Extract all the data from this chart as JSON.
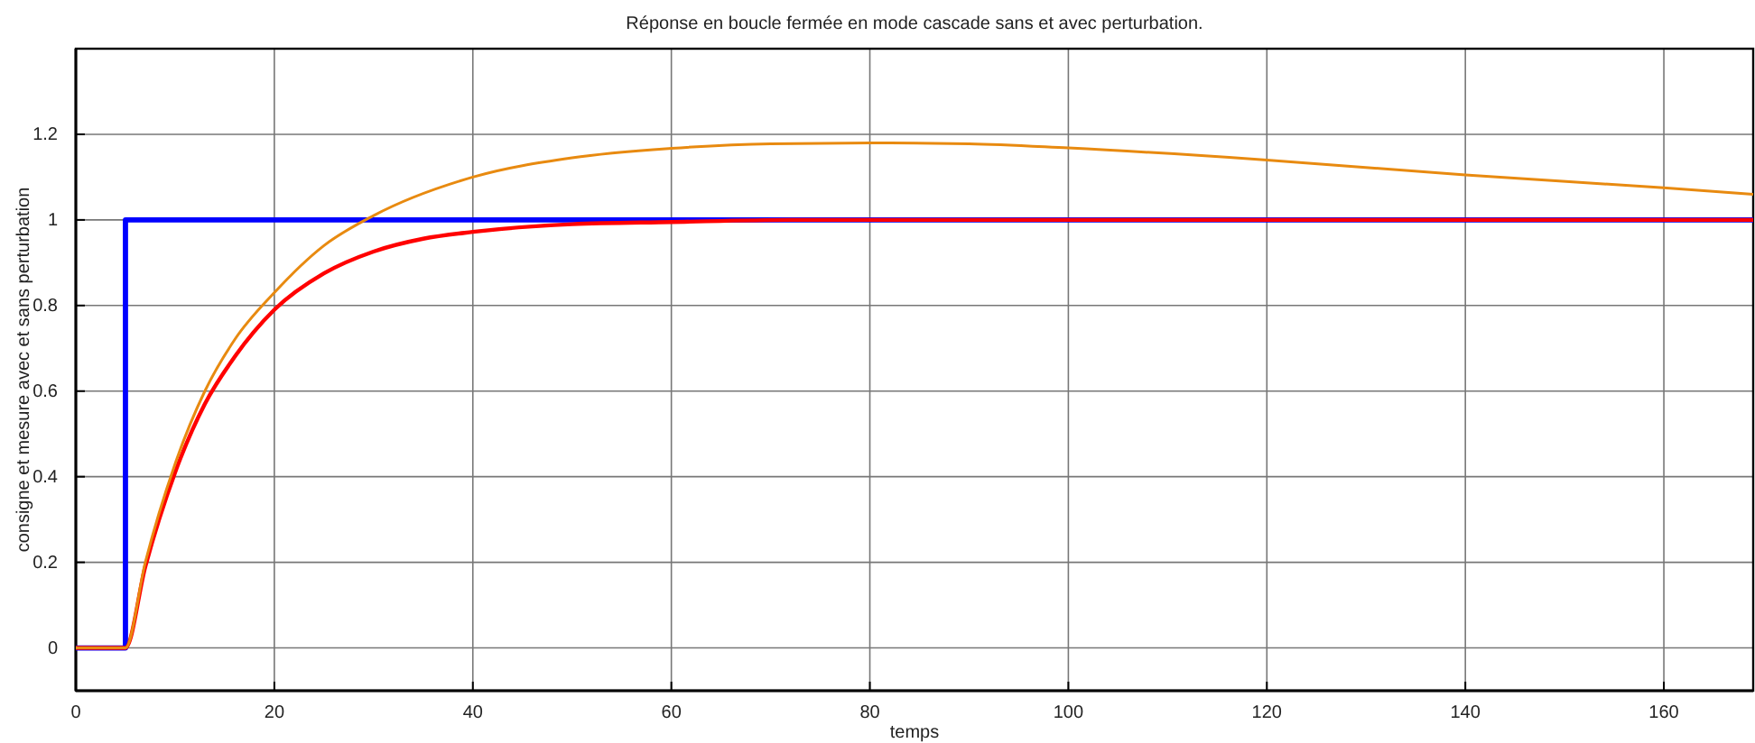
{
  "chart_data": {
    "type": "line",
    "title": "Réponse en boucle fermée en mode cascade sans et avec perturbation.",
    "xlabel": "temps",
    "ylabel": "consigne et mesure avec et sans perturbation",
    "xlim": [
      0,
      169
    ],
    "ylim": [
      -0.1,
      1.4
    ],
    "xticks": [
      0,
      20,
      40,
      60,
      80,
      100,
      120,
      140,
      160
    ],
    "yticks": [
      0,
      0.2,
      0.4,
      0.6,
      0.8,
      1,
      1.2
    ],
    "grid": true,
    "marker": "none",
    "line_style": "solid",
    "series": [
      {
        "color": "#0000ff",
        "x": [
          0,
          5,
          5,
          169
        ],
        "values": [
          0,
          0,
          1,
          1
        ]
      },
      {
        "color": "#ff0000",
        "x": [
          0,
          5,
          7,
          10,
          13,
          16,
          20,
          25,
          30,
          35,
          40,
          50,
          60,
          72,
          169
        ],
        "values": [
          0,
          0,
          0.19,
          0.41,
          0.57,
          0.68,
          0.79,
          0.875,
          0.926,
          0.956,
          0.972,
          0.99,
          0.995,
          1,
          1
        ]
      },
      {
        "color": "#e88a10",
        "x": [
          0,
          5,
          7,
          10,
          13,
          16,
          20,
          25,
          30,
          40,
          50,
          60,
          70,
          80,
          90,
          100,
          120,
          140,
          160,
          169
        ],
        "values": [
          0,
          0,
          0.2,
          0.43,
          0.6,
          0.72,
          0.83,
          0.94,
          1.01,
          1.1,
          1.145,
          1.167,
          1.178,
          1.18,
          1.178,
          1.168,
          1.14,
          1.105,
          1.075,
          1.06
        ]
      }
    ]
  }
}
